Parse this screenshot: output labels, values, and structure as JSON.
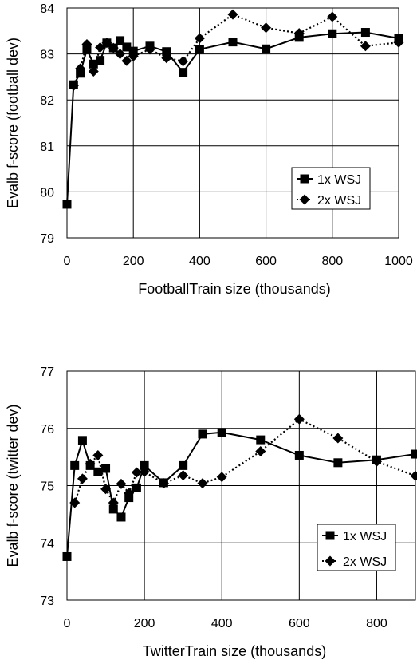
{
  "chart_data": [
    {
      "type": "line",
      "xlabel": "FootballTrain size (thousands)",
      "ylabel": "Evalb f-score (football dev)",
      "xlim": [
        0,
        1000
      ],
      "ylim": [
        79,
        84
      ],
      "xticks": [
        0,
        200,
        400,
        600,
        800,
        1000
      ],
      "yticks": [
        79,
        80,
        81,
        82,
        83,
        84
      ],
      "grid": true,
      "legend_position": "center-right",
      "series": [
        {
          "name": "1x WSJ",
          "marker": "square",
          "line": "solid",
          "x": [
            0,
            20,
            40,
            60,
            80,
            100,
            120,
            140,
            160,
            180,
            200,
            250,
            300,
            350,
            400,
            500,
            600,
            700,
            800,
            900,
            1000
          ],
          "y": [
            79.73,
            82.33,
            82.58,
            83.1,
            82.78,
            82.86,
            83.24,
            83.13,
            83.29,
            83.15,
            83.06,
            83.17,
            83.05,
            82.6,
            83.1,
            83.26,
            83.11,
            83.36,
            83.44,
            83.47,
            83.34
          ]
        },
        {
          "name": "2x WSJ",
          "marker": "diamond",
          "line": "dotted",
          "x": [
            20,
            40,
            60,
            80,
            100,
            120,
            140,
            160,
            180,
            200,
            250,
            300,
            350,
            400,
            500,
            600,
            700,
            800,
            900,
            1000
          ],
          "y": [
            82.31,
            82.68,
            83.21,
            82.62,
            83.14,
            83.24,
            83.13,
            83.0,
            82.85,
            82.95,
            83.1,
            82.91,
            82.84,
            83.34,
            83.86,
            83.57,
            83.45,
            83.81,
            83.17,
            83.25
          ]
        }
      ]
    },
    {
      "type": "line",
      "xlabel": "TwitterTrain size (thousands)",
      "ylabel": "Evalb f-score (twitter dev)",
      "xlim": [
        0,
        900
      ],
      "ylim": [
        73,
        77
      ],
      "xticks": [
        0,
        200,
        400,
        600,
        800
      ],
      "yticks": [
        73,
        74,
        75,
        76,
        77
      ],
      "grid": true,
      "legend_position": "bottom-right",
      "series": [
        {
          "name": "1x WSJ",
          "marker": "square",
          "line": "solid",
          "x": [
            0,
            20,
            40,
            60,
            80,
            100,
            120,
            140,
            160,
            180,
            200,
            250,
            300,
            350,
            400,
            500,
            600,
            700,
            800,
            900
          ],
          "y": [
            73.76,
            75.35,
            75.79,
            75.35,
            75.24,
            75.3,
            74.59,
            74.45,
            74.79,
            74.96,
            75.35,
            75.05,
            75.35,
            75.9,
            75.93,
            75.8,
            75.53,
            75.4,
            75.45,
            75.55
          ]
        },
        {
          "name": "2x WSJ",
          "marker": "diamond",
          "line": "dotted",
          "x": [
            20,
            40,
            60,
            80,
            100,
            120,
            140,
            160,
            180,
            200,
            250,
            300,
            350,
            400,
            500,
            600,
            700,
            800,
            900
          ],
          "y": [
            74.7,
            75.12,
            75.38,
            75.53,
            74.94,
            74.7,
            75.03,
            74.87,
            75.23,
            75.24,
            75.04,
            75.18,
            75.04,
            75.15,
            75.6,
            76.16,
            75.83,
            75.42,
            75.17
          ]
        }
      ]
    }
  ]
}
